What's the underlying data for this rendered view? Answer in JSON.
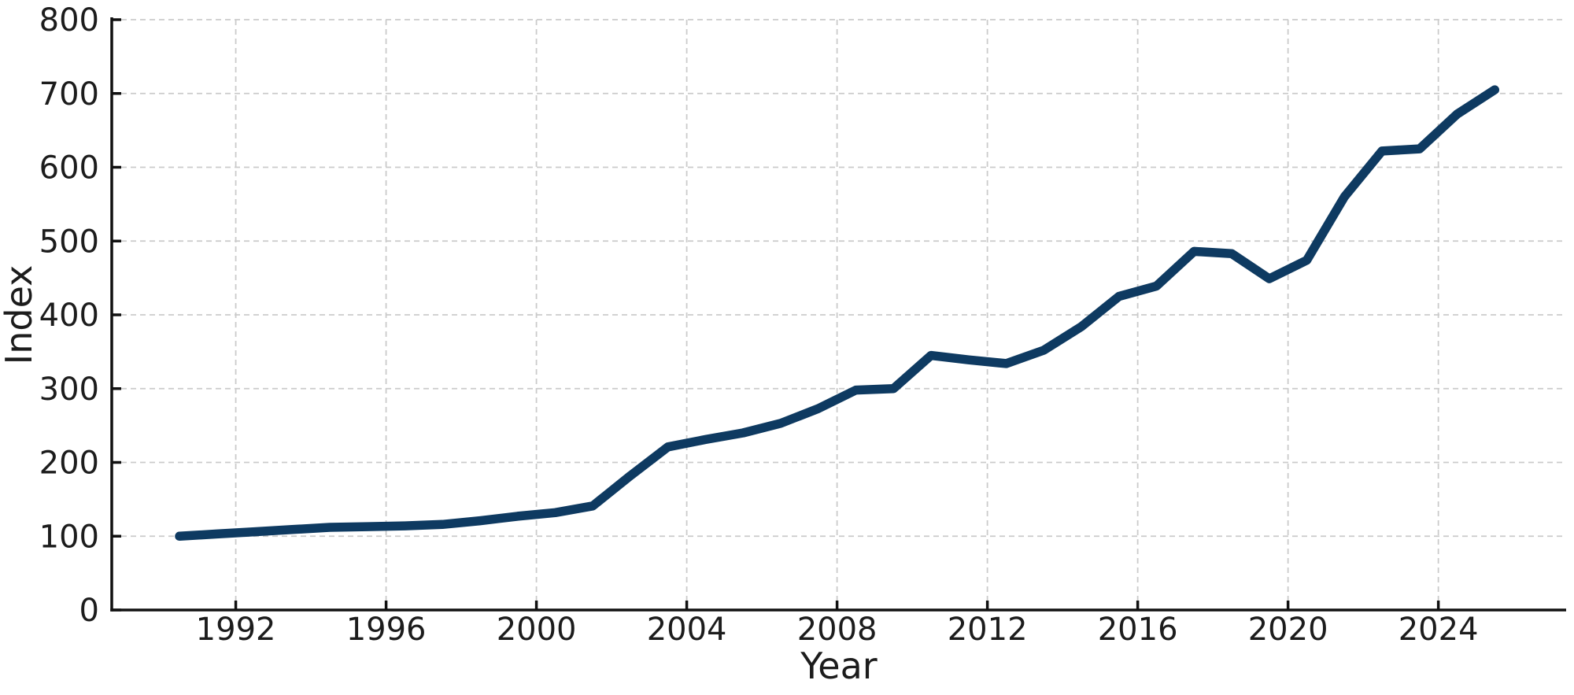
{
  "chart_data": {
    "type": "line",
    "title": "",
    "xlabel": "Year",
    "ylabel": "Index",
    "x": [
      1990,
      1991,
      1992,
      1993,
      1994,
      1995,
      1996,
      1997,
      1998,
      1999,
      2000,
      2001,
      2002,
      2003,
      2004,
      2005,
      2006,
      2007,
      2008,
      2009,
      2010,
      2011,
      2012,
      2013,
      2014,
      2015,
      2016,
      2017,
      2018,
      2019,
      2020,
      2021,
      2022,
      2023,
      2024,
      2025
    ],
    "values": [
      100,
      103,
      106,
      109,
      112,
      113,
      114,
      116,
      121,
      127,
      132,
      141,
      182,
      221,
      231,
      240,
      253,
      273,
      298,
      300,
      345,
      339,
      334,
      352,
      384,
      425,
      439,
      486,
      483,
      449,
      474,
      560,
      622,
      625,
      672,
      705
    ],
    "xticks": [
      1992,
      1996,
      2000,
      2004,
      2008,
      2012,
      2016,
      2020,
      2024
    ],
    "yticks": [
      0,
      100,
      200,
      300,
      400,
      500,
      600,
      700,
      800
    ],
    "xlim": [
      1988.7,
      2027.4
    ],
    "ylim": [
      0,
      800
    ],
    "x_offset": 0.5,
    "grid": true,
    "legend": null,
    "line_color": "#0e3a61",
    "grid_color": "#cbcbcb",
    "spine_color": "#111111",
    "tick_label_color": "#1c1c1c",
    "background_color": "#ffffff"
  }
}
